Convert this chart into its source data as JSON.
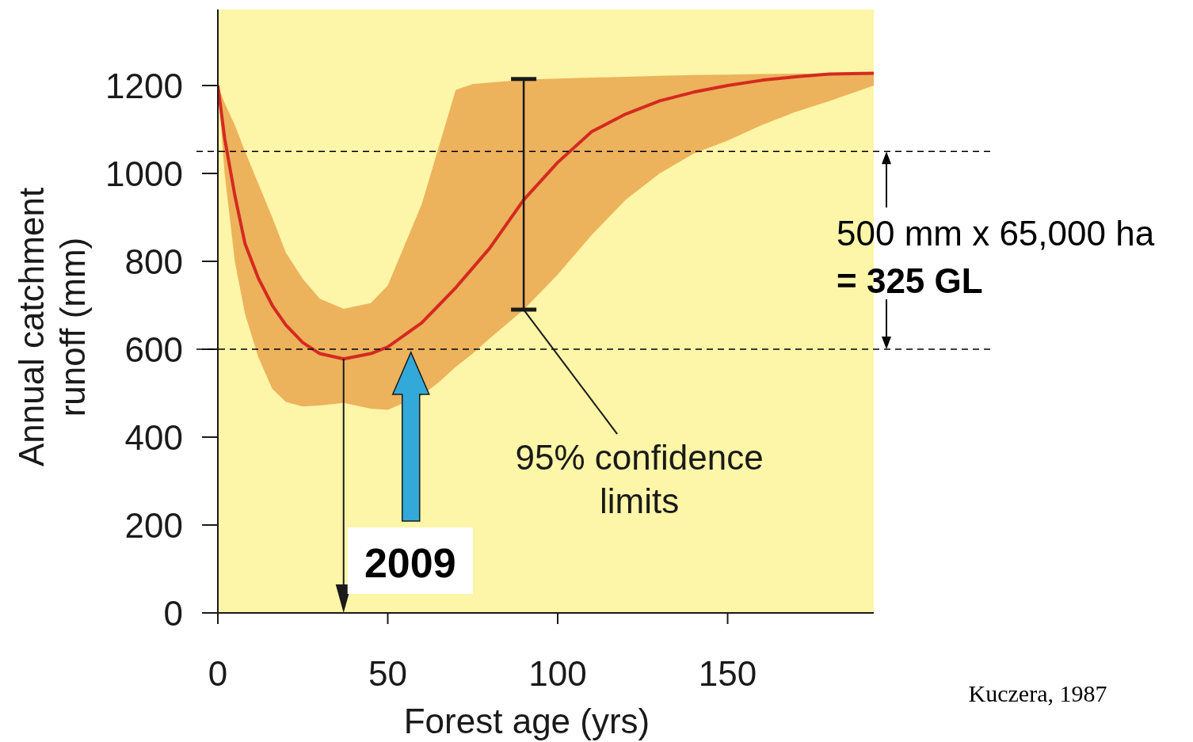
{
  "chart_data": {
    "type": "line",
    "xlabel": "Forest age (yrs)",
    "ylabel": "Annual catchment runoff (mm)",
    "x": [
      0,
      2,
      5,
      8,
      12,
      16,
      20,
      25,
      30,
      37,
      45,
      50,
      60,
      65,
      70,
      75,
      80,
      90,
      100,
      110,
      120,
      130,
      140,
      150,
      160,
      170,
      180,
      193
    ],
    "series": [
      {
        "color": "#d42a20",
        "values": [
          1200,
          1080,
          950,
          840,
          760,
          700,
          655,
          615,
          590,
          578,
          590,
          605,
          660,
          700,
          740,
          785,
          830,
          940,
          1025,
          1095,
          1135,
          1165,
          1185,
          1200,
          1212,
          1220,
          1226,
          1228
        ],
        "lower": [
          1200,
          1000,
          800,
          680,
          580,
          510,
          480,
          470,
          472,
          478,
          465,
          462,
          495,
          525,
          560,
          590,
          625,
          690,
          770,
          860,
          940,
          1000,
          1045,
          1075,
          1110,
          1140,
          1165,
          1200
        ],
        "upper": [
          1200,
          1160,
          1110,
          1050,
          975,
          900,
          820,
          760,
          715,
          692,
          705,
          745,
          930,
          1060,
          1190,
          1203,
          1207,
          1213,
          1216,
          1218,
          1220,
          1222,
          1224,
          1225,
          1226,
          1227,
          1228,
          1230
        ],
        "errors": [
          null,
          null,
          null,
          null,
          null,
          null,
          null,
          null,
          null,
          null,
          null,
          null,
          null,
          null,
          null,
          null,
          null,
          [
            690,
            1215
          ],
          null,
          null,
          null,
          null,
          null,
          null,
          null,
          null,
          null,
          null
        ]
      }
    ],
    "xlim": [
      0,
      193
    ],
    "xticks": [
      0,
      50,
      100,
      150
    ],
    "ylim": [
      0,
      1373
    ],
    "yticks": [
      0,
      200,
      400,
      600,
      800,
      1000,
      1200
    ],
    "ref_lines": [
      {
        "axis": "y",
        "value": 1050,
        "color": "#000000",
        "line_style": "dashed"
      },
      {
        "axis": "y",
        "value": 600,
        "color": "#000000",
        "line_style": "dashed"
      }
    ],
    "annotations": [
      {
        "text": "95% confidence limits",
        "x": 90,
        "y": 690
      },
      {
        "text": "2009",
        "x": 37,
        "y": 578
      },
      "500 mm x 65,000 ha",
      "= 325 GL",
      "Kuczera, 1987"
    ],
    "grid": false,
    "marker": "none",
    "line_style": "solid"
  }
}
